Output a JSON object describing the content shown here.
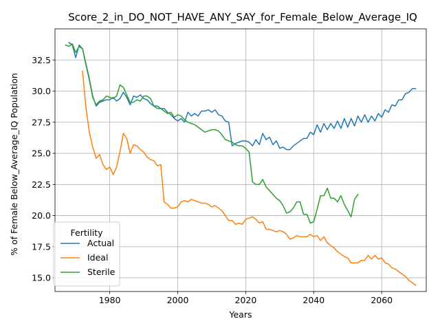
{
  "chart_data": {
    "type": "line",
    "title": "Score_2_in_DO_NOT_HAVE_ANY_SAY_for_Female_Below_Average_IQ",
    "xlabel": "Years",
    "ylabel": "% of Female Below_Average_IQ Population",
    "xlim": [
      1963.9,
      2073.1
    ],
    "ylim": [
      13.9,
      35.0
    ],
    "xticks": [
      1980,
      2000,
      2020,
      2040,
      2060
    ],
    "xtick_labels": [
      "1980",
      "2000",
      "2020",
      "2040",
      "2060"
    ],
    "yticks": [
      15.0,
      17.5,
      20.0,
      22.5,
      25.0,
      27.5,
      30.0,
      32.5
    ],
    "ytick_labels": [
      "15.0",
      "17.5",
      "20.0",
      "22.5",
      "25.0",
      "27.5",
      "30.0",
      "32.5"
    ],
    "grid": true,
    "legend": {
      "title": "Fertility",
      "position": "bottom-left"
    },
    "series": [
      {
        "name": "Actual",
        "color": "#1f77b4",
        "x": [
          1968,
          1969,
          1970,
          1971,
          1972,
          1973,
          1974,
          1975,
          1976,
          1977,
          1978,
          1979,
          1980,
          1981,
          1982,
          1983,
          1984,
          1985,
          1986,
          1987,
          1988,
          1989,
          1990,
          1991,
          1992,
          1993,
          1994,
          1995,
          1996,
          1997,
          1998,
          1999,
          2000,
          2001,
          2002,
          2003,
          2004,
          2005,
          2006,
          2007,
          2008,
          2009,
          2010,
          2011,
          2012,
          2013,
          2014,
          2015,
          2016,
          2017,
          2018,
          2019,
          2020,
          2021,
          2022,
          2023,
          2024,
          2025,
          2026,
          2027,
          2028,
          2029,
          2030,
          2031,
          2032,
          2033,
          2034,
          2035,
          2036,
          2037,
          2038,
          2039,
          2040,
          2041,
          2042,
          2043,
          2044,
          2045,
          2046,
          2047,
          2048,
          2049,
          2050,
          2051,
          2052,
          2053,
          2054,
          2055,
          2056,
          2057,
          2058,
          2059,
          2060,
          2061,
          2062,
          2063,
          2064,
          2065,
          2066,
          2067,
          2068,
          2069,
          2070
        ],
        "y": [
          33.9,
          33.7,
          32.7,
          33.7,
          33.4,
          32.2,
          31.0,
          29.6,
          28.8,
          29.1,
          29.2,
          29.3,
          29.3,
          29.5,
          29.2,
          29.4,
          29.9,
          29.5,
          28.9,
          29.6,
          29.5,
          29.7,
          29.4,
          29.3,
          29.0,
          28.8,
          28.8,
          28.6,
          28.6,
          28.3,
          28.1,
          27.8,
          27.6,
          27.8,
          27.5,
          28.3,
          28.0,
          28.2,
          28.0,
          28.4,
          28.4,
          28.5,
          28.3,
          28.5,
          28.1,
          28.0,
          27.6,
          27.5,
          25.6,
          25.8,
          25.9,
          26.0,
          26.0,
          25.9,
          25.6,
          26.1,
          25.7,
          26.6,
          26.1,
          26.3,
          25.7,
          26.0,
          25.4,
          25.5,
          25.3,
          25.3,
          25.6,
          25.8,
          26.0,
          26.2,
          26.2,
          26.7,
          26.5,
          27.3,
          26.7,
          27.4,
          26.9,
          27.4,
          27.0,
          27.6,
          27.0,
          27.8,
          27.1,
          27.8,
          27.2,
          28.0,
          27.5,
          28.1,
          27.5,
          28.0,
          27.6,
          28.2,
          27.9,
          28.5,
          28.3,
          28.9,
          28.8,
          29.3,
          29.3,
          29.8,
          29.9,
          30.2,
          30.2
        ]
      },
      {
        "name": "Ideal",
        "color": "#ff7f0e",
        "x": [
          1972,
          1973,
          1974,
          1975,
          1976,
          1977,
          1978,
          1979,
          1980,
          1981,
          1982,
          1983,
          1984,
          1985,
          1986,
          1987,
          1988,
          1989,
          1990,
          1991,
          1992,
          1993,
          1994,
          1995,
          1996,
          1997,
          1998,
          1999,
          2000,
          2001,
          2002,
          2003,
          2004,
          2005,
          2006,
          2007,
          2008,
          2009,
          2010,
          2011,
          2012,
          2013,
          2014,
          2015,
          2016,
          2017,
          2018,
          2019,
          2020,
          2021,
          2022,
          2023,
          2024,
          2025,
          2026,
          2027,
          2028,
          2029,
          2030,
          2031,
          2032,
          2033,
          2034,
          2035,
          2036,
          2037,
          2038,
          2039,
          2040,
          2041,
          2042,
          2043,
          2044,
          2045,
          2046,
          2047,
          2048,
          2049,
          2050,
          2051,
          2052,
          2053,
          2054,
          2055,
          2056,
          2057,
          2058,
          2059,
          2060,
          2061,
          2062,
          2063,
          2064,
          2065,
          2066,
          2067,
          2068,
          2069,
          2070
        ],
        "y": [
          31.6,
          28.7,
          26.7,
          25.5,
          24.6,
          24.9,
          24.1,
          23.7,
          23.9,
          23.3,
          23.9,
          25.1,
          26.6,
          26.2,
          25.0,
          25.7,
          25.6,
          25.3,
          25.1,
          24.7,
          24.5,
          24.4,
          24.0,
          24.1,
          21.1,
          20.9,
          20.6,
          20.6,
          20.7,
          21.1,
          21.2,
          21.1,
          21.3,
          21.2,
          21.1,
          21.0,
          21.0,
          20.9,
          20.7,
          20.8,
          20.6,
          20.4,
          20.0,
          19.6,
          19.6,
          19.3,
          19.4,
          19.3,
          19.7,
          19.8,
          19.9,
          19.7,
          19.4,
          19.5,
          18.9,
          18.9,
          18.8,
          18.7,
          18.8,
          18.7,
          18.5,
          18.1,
          18.2,
          18.4,
          18.3,
          18.3,
          18.3,
          18.5,
          18.3,
          18.4,
          18.0,
          18.3,
          17.8,
          17.6,
          17.4,
          17.1,
          16.9,
          16.7,
          16.6,
          16.2,
          16.2,
          16.2,
          16.4,
          16.4,
          16.8,
          16.5,
          16.8,
          16.5,
          16.6,
          16.2,
          16.1,
          15.8,
          15.7,
          15.5,
          15.3,
          15.1,
          14.8,
          14.6,
          14.4
        ]
      },
      {
        "name": "Sterile",
        "color": "#2ca02c",
        "x": [
          1967,
          1968,
          1969,
          1970,
          1971,
          1972,
          1973,
          1974,
          1975,
          1976,
          1977,
          1978,
          1979,
          1980,
          1981,
          1982,
          1983,
          1984,
          1985,
          1986,
          1987,
          1988,
          1989,
          1990,
          1991,
          1992,
          1993,
          1994,
          1995,
          1996,
          1997,
          1998,
          1999,
          2000,
          2001,
          2002,
          2003,
          2004,
          2005,
          2006,
          2007,
          2008,
          2009,
          2010,
          2011,
          2012,
          2013,
          2014,
          2015,
          2016,
          2017,
          2018,
          2019,
          2020,
          2021,
          2022,
          2023,
          2024,
          2025,
          2026,
          2027,
          2028,
          2029,
          2030,
          2031,
          2032,
          2033,
          2034,
          2035,
          2036,
          2037,
          2038,
          2039,
          2040,
          2041,
          2042,
          2043,
          2044,
          2045,
          2046,
          2047,
          2048,
          2049,
          2050,
          2051,
          2052,
          2053
        ],
        "y": [
          33.7,
          33.6,
          33.8,
          33.1,
          33.6,
          33.4,
          32.1,
          30.9,
          29.5,
          28.9,
          29.2,
          29.3,
          29.6,
          29.5,
          29.4,
          29.6,
          30.5,
          30.3,
          29.7,
          29.1,
          29.1,
          29.3,
          29.2,
          29.6,
          29.6,
          29.4,
          28.8,
          28.6,
          28.6,
          28.4,
          28.2,
          28.3,
          27.9,
          28.1,
          28.0,
          27.7,
          27.5,
          27.4,
          27.3,
          27.1,
          26.9,
          26.7,
          26.8,
          26.9,
          26.9,
          26.8,
          26.5,
          26.1,
          26.0,
          25.9,
          25.7,
          25.6,
          25.6,
          25.4,
          25.1,
          22.7,
          22.5,
          22.5,
          22.9,
          22.3,
          22.0,
          21.7,
          21.4,
          21.2,
          20.8,
          20.2,
          20.3,
          20.6,
          21.1,
          21.1,
          20.1,
          20.1,
          19.4,
          19.5,
          20.5,
          21.6,
          21.6,
          22.2,
          21.4,
          21.4,
          21.1,
          21.6,
          20.9,
          20.4,
          19.9,
          21.3,
          21.7
        ]
      }
    ]
  }
}
